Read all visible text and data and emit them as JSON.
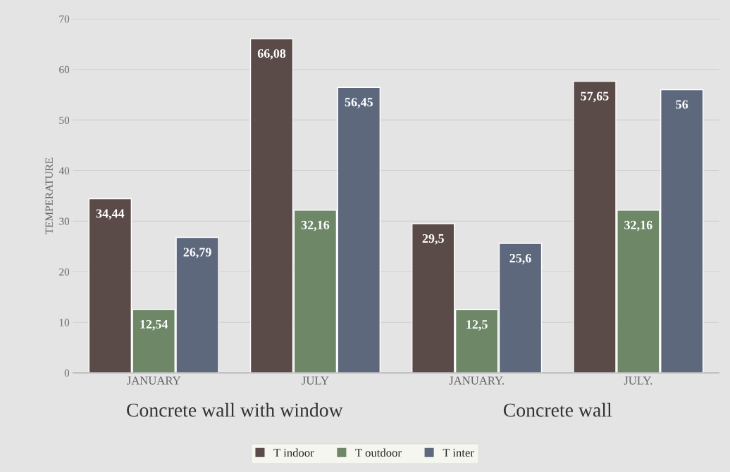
{
  "chart_data": {
    "type": "bar",
    "ylabel": "TEMPERATURE",
    "categories": [
      "JANUARY",
      "JULY",
      "JANUARY.",
      "JULY."
    ],
    "series": [
      {
        "name": "T indoor",
        "color": "#5b4b48",
        "values": [
          34.44,
          66.08,
          29.5,
          57.65
        ],
        "value_labels": [
          "34,44",
          "66,08",
          "29,5",
          "57,65"
        ]
      },
      {
        "name": "T outdoor",
        "color": "#6d8767",
        "values": [
          12.54,
          32.16,
          12.5,
          32.16
        ],
        "value_labels": [
          "12,54",
          "32,16",
          "12,5",
          "32,16"
        ]
      },
      {
        "name": "T inter",
        "color": "#5d687d",
        "values": [
          26.79,
          56.45,
          25.6,
          56
        ],
        "value_labels": [
          "26,79",
          "56,45",
          "25,6",
          "56"
        ]
      }
    ],
    "annotations": [
      "Concrete wall with window",
      "Concrete wall"
    ],
    "ylim": [
      0,
      70
    ],
    "yticks": [
      0,
      10,
      20,
      30,
      40,
      50,
      60,
      70
    ],
    "grid": "y",
    "legend": "bottom"
  }
}
